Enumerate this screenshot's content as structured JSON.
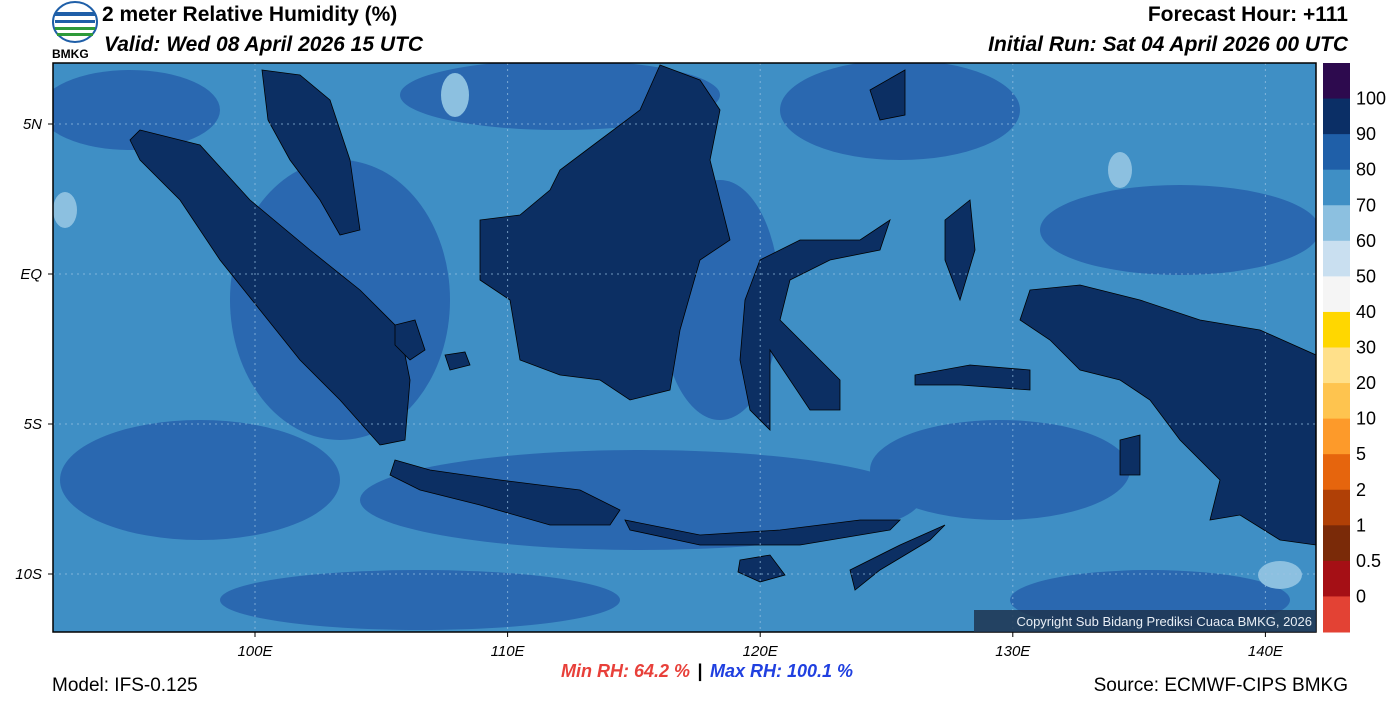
{
  "header": {
    "title": "2 meter Relative Humidity (%)",
    "valid": "Valid: Wed 08 April 2026 15 UTC",
    "forecast_hour": "Forecast Hour: +111",
    "initial_run": "Initial Run: Sat 04 April 2026 00 UTC",
    "logo_text": "BMKG"
  },
  "map": {
    "lat_labels": [
      "5N",
      "EQ",
      "5S",
      "10S"
    ],
    "lon_labels": [
      "100E",
      "110E",
      "120E",
      "130E",
      "140E"
    ],
    "copyright": "Copyright Sub Bidang Prediksi Cuaca BMKG, 2026"
  },
  "colorbar": {
    "labels": [
      "100",
      "90",
      "80",
      "70",
      "60",
      "50",
      "40",
      "30",
      "20",
      "10",
      "5",
      "2",
      "1",
      "0.5",
      "0"
    ],
    "colors": [
      "#2d0a4e",
      "#0b2f66",
      "#1f5fa8",
      "#3f8fc5",
      "#8cc0e0",
      "#c9dff0",
      "#f5f5f5",
      "#ffd700",
      "#ffe08a",
      "#fec44f",
      "#fd9a2a",
      "#e6650d",
      "#b04006",
      "#7a2a08",
      "#a50f15",
      "#e34234"
    ]
  },
  "footer": {
    "model": "Model: IFS-0.125",
    "min_rh": "Min RH:  64.2 %",
    "separator": "|",
    "max_rh": "Max RH: 100.1 %",
    "source": "Source: ECMWF-CIPS BMKG"
  }
}
